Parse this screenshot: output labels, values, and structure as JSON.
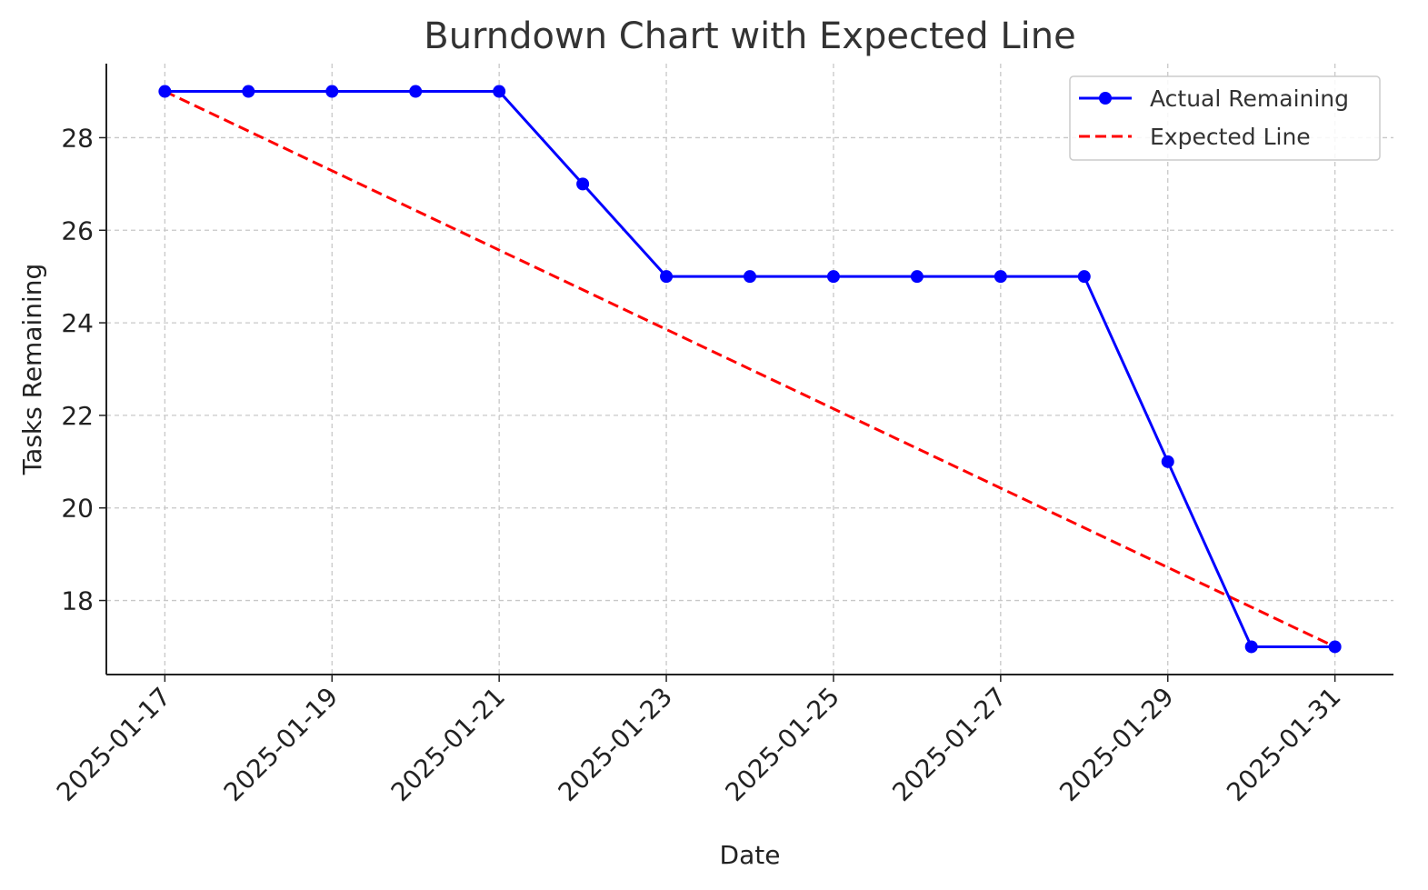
{
  "chart_data": {
    "type": "line",
    "title": "Burndown Chart with Expected Line",
    "xlabel": "Date",
    "ylabel": "Tasks Remaining",
    "x_dates": [
      "2025-01-17",
      "2025-01-18",
      "2025-01-19",
      "2025-01-20",
      "2025-01-21",
      "2025-01-22",
      "2025-01-23",
      "2025-01-24",
      "2025-01-25",
      "2025-01-26",
      "2025-01-27",
      "2025-01-28",
      "2025-01-29",
      "2025-01-30",
      "2025-01-31"
    ],
    "x_tick_labels": [
      "2025-01-17",
      "2025-01-19",
      "2025-01-21",
      "2025-01-23",
      "2025-01-25",
      "2025-01-27",
      "2025-01-29",
      "2025-01-31"
    ],
    "xlim": [
      "2025-01-16.3",
      "2025-01-31.7"
    ],
    "y_ticks": [
      18,
      20,
      22,
      24,
      26,
      28
    ],
    "ylim": [
      16.4,
      29.6
    ],
    "grid": true,
    "legend_position": "top-right",
    "series": [
      {
        "name": "Actual Remaining",
        "color": "#0000ff",
        "style": "solid-with-markers",
        "values": [
          29,
          29,
          29,
          29,
          29,
          27,
          25,
          25,
          25,
          25,
          25,
          25,
          21,
          17,
          17
        ]
      },
      {
        "name": "Expected Line",
        "color": "#ff0000",
        "style": "dashed",
        "values": [
          29,
          17
        ],
        "x": [
          "2025-01-17",
          "2025-01-31"
        ]
      }
    ]
  }
}
